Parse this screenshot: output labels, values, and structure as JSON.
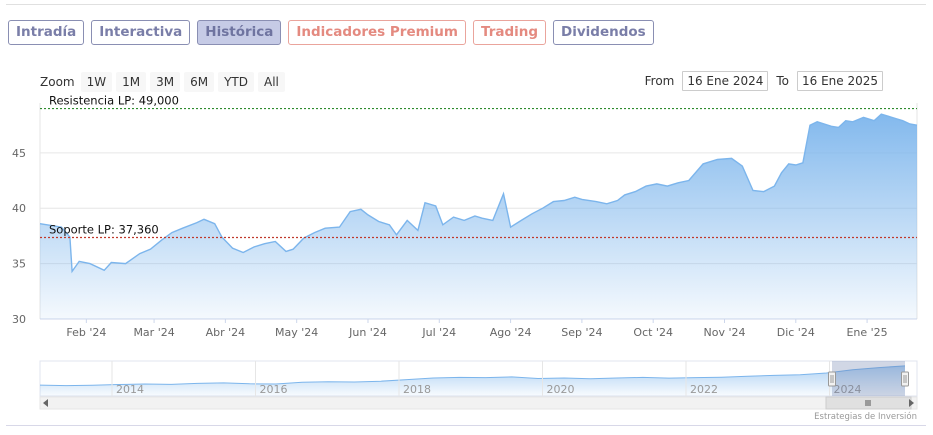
{
  "tabs": [
    {
      "label": "Intradía",
      "style": "blue"
    },
    {
      "label": "Interactiva",
      "style": "blue"
    },
    {
      "label": "Histórica",
      "style": "active"
    },
    {
      "label": "Indicadores Premium",
      "style": "red"
    },
    {
      "label": "Trading",
      "style": "red"
    },
    {
      "label": "Dividendos",
      "style": "blue"
    }
  ],
  "zoom": {
    "label": "Zoom",
    "buttons": [
      "1W",
      "1M",
      "3M",
      "6M",
      "YTD",
      "All"
    ]
  },
  "range": {
    "from_label": "From",
    "from_value": "16 Ene 2024",
    "to_label": "To",
    "to_value": "16 Ene 2025"
  },
  "credit": "Estrategias de Inversión",
  "colors": {
    "line": "#7cb5ec",
    "resistance": "#2e8b2e",
    "support": "#c0392b"
  },
  "chart_data": {
    "type": "area",
    "ylim": [
      30,
      49.5
    ],
    "yticks": [
      30,
      35,
      40,
      45
    ],
    "xlim": [
      0,
      12.3
    ],
    "xticks": [
      {
        "pos": 0.65,
        "label": "Feb '24"
      },
      {
        "pos": 1.6,
        "label": "Mar '24"
      },
      {
        "pos": 2.6,
        "label": "Abr '24"
      },
      {
        "pos": 3.6,
        "label": "May '24"
      },
      {
        "pos": 4.6,
        "label": "Jun '24"
      },
      {
        "pos": 5.6,
        "label": "Jul '24"
      },
      {
        "pos": 6.6,
        "label": "Ago '24"
      },
      {
        "pos": 7.6,
        "label": "Sep '24"
      },
      {
        "pos": 8.6,
        "label": "Oct '24"
      },
      {
        "pos": 9.6,
        "label": "Nov '24"
      },
      {
        "pos": 10.6,
        "label": "Dic '24"
      },
      {
        "pos": 11.6,
        "label": "Ene '25"
      }
    ],
    "series": [
      {
        "x": [
          0,
          0.3,
          0.42,
          0.45,
          0.55,
          0.7,
          0.9,
          1.0,
          1.2,
          1.4,
          1.55,
          1.7,
          1.85,
          2.0,
          2.2,
          2.3,
          2.45,
          2.55,
          2.7,
          2.85,
          3.0,
          3.15,
          3.3,
          3.45,
          3.55,
          3.7,
          3.85,
          4.0,
          4.2,
          4.35,
          4.5,
          4.6,
          4.75,
          4.9,
          5.0,
          5.15,
          5.3,
          5.4,
          5.55,
          5.65,
          5.8,
          5.95,
          6.1,
          6.2,
          6.35,
          6.5,
          6.6,
          6.75,
          6.9,
          7.05,
          7.2,
          7.35,
          7.5,
          7.6,
          7.8,
          7.95,
          8.1,
          8.2,
          8.35,
          8.5,
          8.65,
          8.8,
          8.95,
          9.1,
          9.3,
          9.5,
          9.7,
          9.85,
          10.0,
          10.15,
          10.3,
          10.4,
          10.5,
          10.6,
          10.7,
          10.8,
          10.9,
          11.0,
          11.1,
          11.2,
          11.3,
          11.4,
          11.55,
          11.7,
          11.8,
          11.9,
          12.0,
          12.1,
          12.2,
          12.3
        ],
        "values": [
          38.6,
          38.3,
          37.4,
          34.3,
          35.2,
          35.0,
          34.4,
          35.1,
          35.0,
          35.9,
          36.3,
          37.1,
          37.8,
          38.2,
          38.7,
          39.0,
          38.6,
          37.4,
          36.4,
          36.0,
          36.5,
          36.8,
          37.0,
          36.1,
          36.3,
          37.3,
          37.8,
          38.2,
          38.3,
          39.7,
          39.9,
          39.4,
          38.8,
          38.5,
          37.6,
          38.9,
          38.0,
          40.5,
          40.2,
          38.5,
          39.2,
          38.9,
          39.3,
          39.1,
          38.9,
          41.3,
          38.3,
          38.9,
          39.5,
          40.0,
          40.6,
          40.7,
          41.0,
          40.8,
          40.6,
          40.4,
          40.7,
          41.2,
          41.5,
          42.0,
          42.2,
          42.0,
          42.3,
          42.5,
          44.0,
          44.4,
          44.5,
          43.8,
          41.6,
          41.5,
          42.0,
          43.2,
          44.0,
          43.9,
          44.1,
          47.5,
          47.8,
          47.6,
          47.4,
          47.3,
          47.9,
          47.8,
          48.2,
          47.9,
          48.5,
          48.3,
          48.1,
          47.9,
          47.6,
          47.5
        ]
      }
    ],
    "annotations": [
      {
        "label": "Resistencia LP: 49,000",
        "value": 49.0
      },
      {
        "label": "Soporte LP: 37,360",
        "value": 37.36
      }
    ],
    "navigator": {
      "labels": [
        "2014",
        "2016",
        "2018",
        "2020",
        "2022",
        "2024"
      ],
      "values": [
        30,
        29.5,
        29.8,
        30.5,
        31.0,
        30.6,
        31.5,
        32.0,
        31.2,
        31.0,
        32.5,
        33.0,
        32.8,
        33.5,
        35.0,
        36.5,
        37.0,
        36.8,
        37.5,
        36.0,
        36.5,
        35.8,
        36.5,
        37.0,
        36.4,
        36.8,
        37.2,
        38.0,
        38.8,
        39.5,
        41.0,
        44.0,
        46.0,
        47.5
      ]
    }
  }
}
